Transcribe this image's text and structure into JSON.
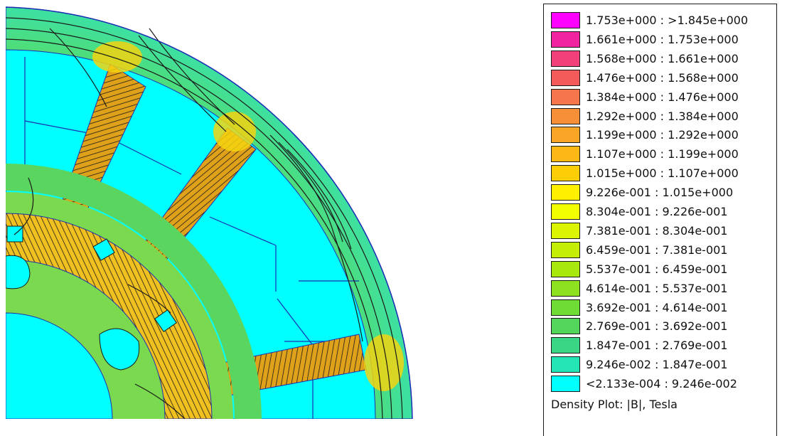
{
  "plot": {
    "title": "",
    "colors": {
      "air": "#ffffff",
      "low_field": "#00ffff",
      "mid_field": "#55e07a",
      "high_field": "#ffcc00",
      "saturated": "#e65c1e",
      "contour": "#1a1a1a",
      "boundary": "#1c2fb5"
    }
  },
  "legend": {
    "rows": [
      {
        "label": "1.753e+000 : >1.845e+000",
        "color": "#ff00ff"
      },
      {
        "label": "1.661e+000 : 1.753e+000",
        "color": "#f0249e"
      },
      {
        "label": "1.568e+000 : 1.661e+000",
        "color": "#f2407a"
      },
      {
        "label": "1.476e+000 : 1.568e+000",
        "color": "#f35a5a"
      },
      {
        "label": "1.384e+000 : 1.476e+000",
        "color": "#f4764a"
      },
      {
        "label": "1.292e+000 : 1.384e+000",
        "color": "#f68f38"
      },
      {
        "label": "1.199e+000 : 1.292e+000",
        "color": "#f9a526"
      },
      {
        "label": "1.107e+000 : 1.199e+000",
        "color": "#fbb713"
      },
      {
        "label": "1.015e+000 : 1.107e+000",
        "color": "#fdcd05"
      },
      {
        "label": "9.226e-001 : 1.015e+000",
        "color": "#fff000"
      },
      {
        "label": "8.304e-001 : 9.226e-001",
        "color": "#f1ff00"
      },
      {
        "label": "7.381e-001 : 8.304e-001",
        "color": "#dbf500"
      },
      {
        "label": "6.459e-001 : 7.381e-001",
        "color": "#c4ee06"
      },
      {
        "label": "5.537e-001 : 6.459e-001",
        "color": "#a8e80c"
      },
      {
        "label": "4.614e-001 : 5.537e-001",
        "color": "#8de11e"
      },
      {
        "label": "3.692e-001 : 4.614e-001",
        "color": "#6fdc36"
      },
      {
        "label": "2.769e-001 : 3.692e-001",
        "color": "#52d55a"
      },
      {
        "label": "1.847e-001 : 2.769e-001",
        "color": "#3ad685"
      },
      {
        "label": "9.246e-002 : 1.847e-001",
        "color": "#22e4b4"
      },
      {
        "label": "<2.133e-004 : 9.246e-002",
        "color": "#00ffff"
      }
    ],
    "title": "Density Plot: |B|, Tesla"
  }
}
